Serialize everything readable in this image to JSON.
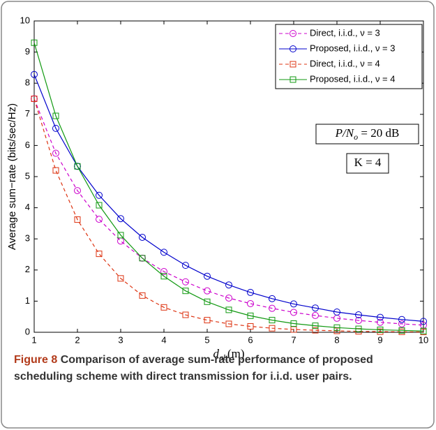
{
  "chart_data": {
    "type": "line",
    "xlabel": {
      "base": "d",
      "sub": "ab",
      "rest": "(m)"
    },
    "ylabel": "Average sum−rate (bits/sec/Hz)",
    "x": [
      1,
      1.5,
      2,
      2.5,
      3,
      3.5,
      4,
      4.5,
      5,
      5.5,
      6,
      6.5,
      7,
      7.5,
      8,
      8.5,
      9,
      9.5,
      10
    ],
    "series": [
      {
        "name": "Direct, i.i.d., ν = 3",
        "color": "#cc00cc",
        "dash": true,
        "marker": "circle",
        "values": [
          7.5,
          5.75,
          4.55,
          3.63,
          2.93,
          2.38,
          1.95,
          1.62,
          1.33,
          1.1,
          0.92,
          0.77,
          0.64,
          0.54,
          0.45,
          0.38,
          0.32,
          0.27,
          0.23
        ]
      },
      {
        "name": "Proposed, i.i.d., ν = 3",
        "color": "#0000cc",
        "dash": false,
        "marker": "circle",
        "values": [
          8.28,
          6.55,
          5.33,
          4.4,
          3.65,
          3.05,
          2.57,
          2.15,
          1.8,
          1.52,
          1.28,
          1.08,
          0.91,
          0.78,
          0.65,
          0.56,
          0.48,
          0.41,
          0.35
        ]
      },
      {
        "name": "Direct, i.i.d., ν = 4",
        "color": "#dd3311",
        "dash": true,
        "marker": "square",
        "values": [
          7.5,
          5.2,
          3.62,
          2.52,
          1.73,
          1.18,
          0.8,
          0.56,
          0.39,
          0.27,
          0.19,
          0.13,
          0.09,
          0.065,
          0.045,
          0.03,
          0.02,
          0.015,
          0.01
        ]
      },
      {
        "name": "Proposed, i.i.d., ν = 4",
        "color": "#119911",
        "dash": false,
        "marker": "square",
        "values": [
          9.3,
          6.95,
          5.33,
          4.08,
          3.12,
          2.38,
          1.8,
          1.33,
          0.98,
          0.72,
          0.53,
          0.39,
          0.28,
          0.21,
          0.15,
          0.11,
          0.08,
          0.06,
          0.04
        ]
      }
    ],
    "xlim": [
      1,
      10
    ],
    "xticks": [
      1,
      2,
      3,
      4,
      5,
      6,
      7,
      8,
      9,
      10
    ],
    "ylim": [
      0,
      10
    ],
    "yticks": [
      0,
      1,
      2,
      3,
      4,
      5,
      6,
      7,
      8,
      9,
      10
    ],
    "grid": false,
    "legend": "top-right",
    "annotations": [
      {
        "base": "P/N",
        "sub": "o",
        "rest": " = 20 dB"
      },
      {
        "base": "K = 4"
      }
    ],
    "caption": {
      "label": "Figure 8",
      "text": "Comparison of average sum-rate performance of proposed scheduling scheme with direct transmission for i.i.d. user pairs."
    }
  }
}
